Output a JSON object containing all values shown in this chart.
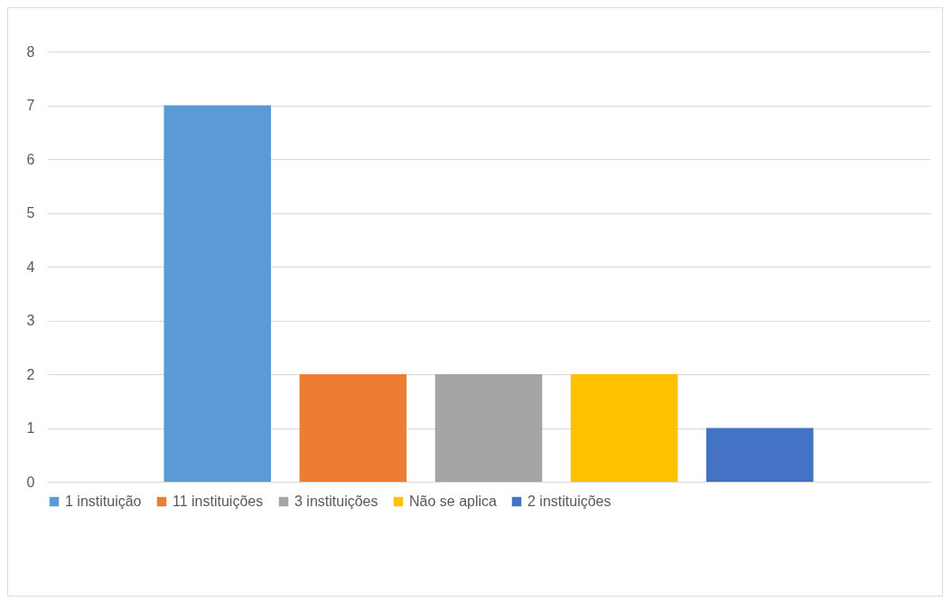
{
  "chart_data": {
    "type": "bar",
    "categories": [
      null
    ],
    "series": [
      {
        "name": "1 instituição",
        "color": "#5b9bd5",
        "values": [
          7
        ]
      },
      {
        "name": "11 instituições",
        "color": "#ed7d31",
        "values": [
          2
        ]
      },
      {
        "name": "3 instituições",
        "color": "#a5a5a5",
        "values": [
          2
        ]
      },
      {
        "name": "Não se aplica",
        "color": "#ffc000",
        "values": [
          2
        ]
      },
      {
        "name": "2 instituições",
        "color": "#4472c4",
        "values": [
          1
        ]
      }
    ],
    "ylim": [
      0,
      8
    ],
    "yticks": [
      0,
      1,
      2,
      3,
      4,
      5,
      6,
      7,
      8
    ],
    "grid": "y",
    "legend": "bottom"
  }
}
